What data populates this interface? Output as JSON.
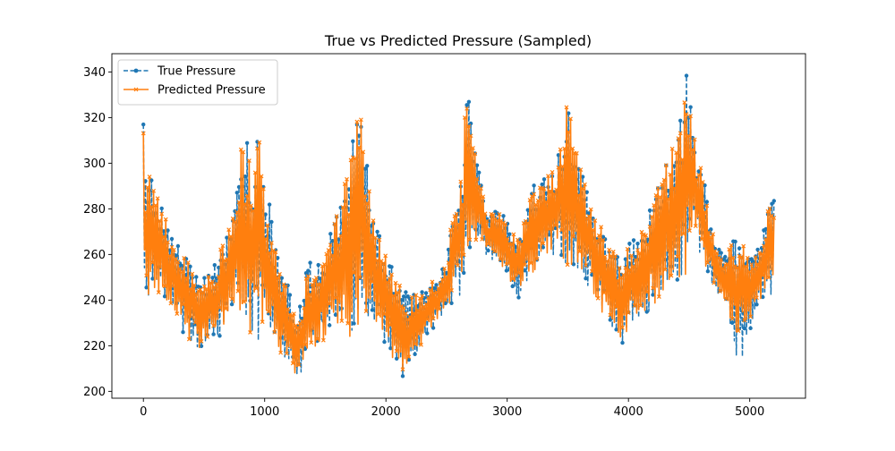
{
  "chart_data": {
    "type": "line",
    "title": "True vs Predicted Pressure (Sampled)",
    "xlabel": "",
    "ylabel": "",
    "xlim": [
      -260,
      5460
    ],
    "ylim": [
      197,
      348
    ],
    "x_ticks": [
      0,
      1000,
      2000,
      3000,
      4000,
      5000
    ],
    "y_ticks": [
      200,
      220,
      240,
      260,
      280,
      300,
      320,
      340
    ],
    "grid": false,
    "legend_position": "top-left",
    "series": [
      {
        "name": "True Pressure",
        "color": "#1f77b4",
        "style": "dashed",
        "marker": "circle",
        "envelope": {
          "x": [
            0,
            20,
            60,
            100,
            200,
            300,
            400,
            500,
            600,
            700,
            760,
            800,
            850,
            900,
            960,
            1000,
            1050,
            1100,
            1200,
            1250,
            1300,
            1350,
            1400,
            1500,
            1600,
            1650,
            1700,
            1740,
            1780,
            1820,
            1850,
            1900,
            1950,
            2000,
            2100,
            2150,
            2200,
            2300,
            2400,
            2500,
            2560,
            2600,
            2640,
            2660,
            2700,
            2750,
            2800,
            2850,
            2900,
            3000,
            3050,
            3080,
            3100,
            3150,
            3200,
            3300,
            3400,
            3450,
            3500,
            3550,
            3600,
            3700,
            3800,
            3900,
            3950,
            4000,
            4100,
            4200,
            4300,
            4350,
            4400,
            4450,
            4480,
            4500,
            4550,
            4600,
            4650,
            4700,
            4750,
            4800,
            4850,
            4900,
            4920,
            5000,
            5050,
            5100,
            5150,
            5200
          ],
          "upper": [
            322,
            290,
            298,
            293,
            275,
            262,
            256,
            254,
            258,
            272,
            282,
            305,
            311,
            300,
            315,
            290,
            280,
            265,
            245,
            233,
            240,
            255,
            258,
            262,
            280,
            290,
            300,
            320,
            325,
            312,
            300,
            280,
            268,
            260,
            250,
            245,
            242,
            245,
            250,
            256,
            285,
            282,
            315,
            330,
            325,
            300,
            290,
            278,
            282,
            275,
            272,
            268,
            270,
            278,
            290,
            295,
            300,
            315,
            335,
            310,
            300,
            282,
            270,
            262,
            258,
            265,
            270,
            285,
            300,
            310,
            312,
            328,
            340,
            338,
            310,
            300,
            285,
            270,
            262,
            260,
            268,
            266,
            270,
            258,
            262,
            270,
            280,
            285
          ],
          "lower": [
            263,
            240,
            242,
            242,
            236,
            228,
            220,
            217,
            222,
            228,
            237,
            232,
            226,
            224,
            222,
            222,
            220,
            218,
            210,
            206,
            208,
            214,
            218,
            222,
            226,
            230,
            222,
            218,
            230,
            236,
            232,
            227,
            222,
            218,
            210,
            205,
            212,
            220,
            228,
            235,
            240,
            246,
            224,
            255,
            258,
            262,
            262,
            258,
            256,
            250,
            240,
            229,
            238,
            246,
            250,
            258,
            260,
            256,
            250,
            250,
            254,
            242,
            232,
            225,
            218,
            227,
            232,
            236,
            240,
            244,
            248,
            246,
            252,
            262,
            266,
            258,
            250,
            246,
            242,
            238,
            222,
            214,
            210,
            226,
            236,
            240,
            242,
            242
          ]
        }
      },
      {
        "name": "Predicted Pressure",
        "color": "#ff7f0e",
        "style": "solid",
        "marker": "x",
        "envelope": {
          "x": [
            0,
            20,
            60,
            100,
            200,
            300,
            400,
            500,
            600,
            700,
            760,
            800,
            850,
            900,
            960,
            1000,
            1050,
            1100,
            1200,
            1250,
            1300,
            1350,
            1400,
            1500,
            1600,
            1650,
            1700,
            1740,
            1780,
            1820,
            1850,
            1900,
            1950,
            2000,
            2100,
            2150,
            2200,
            2300,
            2400,
            2500,
            2560,
            2600,
            2640,
            2660,
            2700,
            2750,
            2800,
            2850,
            2900,
            3000,
            3050,
            3080,
            3100,
            3150,
            3200,
            3300,
            3400,
            3450,
            3500,
            3550,
            3600,
            3700,
            3800,
            3900,
            3950,
            4000,
            4100,
            4200,
            4300,
            4350,
            4400,
            4450,
            4480,
            4500,
            4550,
            4600,
            4650,
            4700,
            4750,
            4800,
            4850,
            4900,
            4920,
            5000,
            5050,
            5100,
            5150,
            5200
          ],
          "upper": [
            320,
            288,
            297,
            292,
            274,
            261,
            255,
            253,
            257,
            271,
            282,
            306,
            310,
            300,
            314,
            290,
            279,
            264,
            244,
            232,
            239,
            254,
            257,
            261,
            279,
            289,
            299,
            318,
            328,
            311,
            300,
            279,
            267,
            259,
            249,
            244,
            241,
            244,
            249,
            255,
            284,
            281,
            312,
            336,
            324,
            299,
            289,
            277,
            281,
            274,
            271,
            267,
            269,
            277,
            289,
            294,
            299,
            314,
            337,
            309,
            299,
            281,
            269,
            261,
            257,
            264,
            269,
            284,
            299,
            309,
            311,
            327,
            342,
            337,
            309,
            299,
            284,
            269,
            261,
            259,
            267,
            265,
            268,
            257,
            261,
            269,
            279,
            286
          ],
          "lower": [
            264,
            241,
            243,
            243,
            237,
            229,
            221,
            218,
            223,
            229,
            238,
            233,
            227,
            225,
            223,
            223,
            221,
            219,
            211,
            207,
            209,
            215,
            219,
            223,
            227,
            231,
            223,
            219,
            231,
            237,
            233,
            228,
            223,
            219,
            211,
            208,
            213,
            221,
            229,
            236,
            241,
            247,
            232,
            256,
            259,
            263,
            263,
            259,
            257,
            251,
            246,
            242,
            246,
            247,
            251,
            259,
            261,
            257,
            251,
            251,
            255,
            243,
            233,
            226,
            222,
            228,
            233,
            237,
            241,
            245,
            249,
            247,
            253,
            263,
            267,
            259,
            251,
            247,
            243,
            239,
            230,
            222,
            222,
            232,
            237,
            241,
            243,
            243
          ]
        }
      }
    ]
  }
}
